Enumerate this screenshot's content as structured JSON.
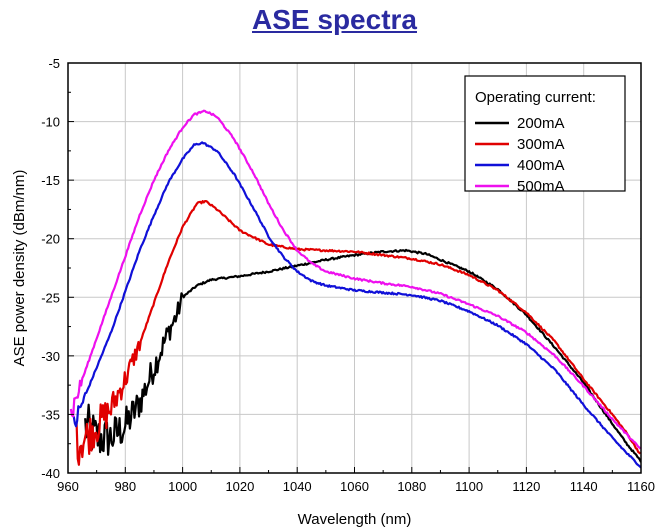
{
  "chart_data": {
    "type": "line",
    "title": "ASE spectra",
    "xlabel": "Wavelength (nm)",
    "ylabel": "ASE power density (dBm/nm)",
    "xlim": [
      960,
      1160
    ],
    "ylim": [
      -40,
      -5
    ],
    "xticks": [
      960,
      980,
      1000,
      1020,
      1040,
      1060,
      1080,
      1100,
      1120,
      1140,
      1160
    ],
    "yticks": [
      -40,
      -35,
      -30,
      -25,
      -20,
      -15,
      -10,
      -5
    ],
    "grid": true,
    "legend": {
      "title": "Operating current:",
      "position": "top-right",
      "entries": [
        "200mA",
        "300mA",
        "400mA",
        "500mA"
      ]
    },
    "series": [
      {
        "name": "200mA",
        "color": "#000000",
        "noise_below": 1000,
        "noise_amp": 2.2,
        "points": [
          [
            966,
            -36
          ],
          [
            970,
            -37
          ],
          [
            975,
            -37
          ],
          [
            980,
            -36
          ],
          [
            985,
            -34
          ],
          [
            990,
            -31
          ],
          [
            995,
            -28
          ],
          [
            998,
            -26.5
          ],
          [
            1000,
            -25
          ],
          [
            1005,
            -24
          ],
          [
            1010,
            -23.5
          ],
          [
            1020,
            -23.2
          ],
          [
            1030,
            -22.8
          ],
          [
            1040,
            -22.3
          ],
          [
            1050,
            -21.8
          ],
          [
            1060,
            -21.4
          ],
          [
            1070,
            -21.1
          ],
          [
            1078,
            -21.0
          ],
          [
            1085,
            -21.3
          ],
          [
            1090,
            -21.8
          ],
          [
            1100,
            -22.8
          ],
          [
            1110,
            -24.3
          ],
          [
            1120,
            -26.5
          ],
          [
            1130,
            -29.3
          ],
          [
            1140,
            -32.3
          ],
          [
            1150,
            -35.8
          ],
          [
            1155,
            -37.5
          ],
          [
            1160,
            -39.0
          ]
        ]
      },
      {
        "name": "300mA",
        "color": "#e00000",
        "noise_below": 985,
        "noise_amp": 2.0,
        "points": [
          [
            963,
            -37.5
          ],
          [
            966,
            -37
          ],
          [
            970,
            -36
          ],
          [
            975,
            -34.5
          ],
          [
            980,
            -32
          ],
          [
            985,
            -29
          ],
          [
            990,
            -25.5
          ],
          [
            995,
            -22
          ],
          [
            1000,
            -19
          ],
          [
            1005,
            -17
          ],
          [
            1008,
            -16.8
          ],
          [
            1012,
            -17.5
          ],
          [
            1020,
            -19.3
          ],
          [
            1030,
            -20.5
          ],
          [
            1040,
            -20.9
          ],
          [
            1050,
            -21.0
          ],
          [
            1060,
            -21.1
          ],
          [
            1070,
            -21.4
          ],
          [
            1080,
            -21.7
          ],
          [
            1090,
            -22.2
          ],
          [
            1100,
            -23.1
          ],
          [
            1110,
            -24.4
          ],
          [
            1120,
            -26.3
          ],
          [
            1130,
            -28.8
          ],
          [
            1140,
            -32.0
          ],
          [
            1150,
            -35.0
          ],
          [
            1155,
            -36.6
          ],
          [
            1160,
            -38.5
          ]
        ]
      },
      {
        "name": "400mA",
        "color": "#1010d8",
        "noise_below": 966,
        "noise_amp": 1.2,
        "points": [
          [
            962,
            -36
          ],
          [
            965,
            -34
          ],
          [
            970,
            -31
          ],
          [
            975,
            -28
          ],
          [
            980,
            -24.5
          ],
          [
            985,
            -21
          ],
          [
            990,
            -18
          ],
          [
            995,
            -15.2
          ],
          [
            1000,
            -13.2
          ],
          [
            1004,
            -12
          ],
          [
            1007,
            -11.8
          ],
          [
            1012,
            -12.5
          ],
          [
            1018,
            -14.5
          ],
          [
            1025,
            -17.5
          ],
          [
            1030,
            -19.8
          ],
          [
            1035,
            -21.5
          ],
          [
            1040,
            -22.8
          ],
          [
            1045,
            -23.6
          ],
          [
            1050,
            -24.0
          ],
          [
            1060,
            -24.4
          ],
          [
            1070,
            -24.6
          ],
          [
            1080,
            -24.8
          ],
          [
            1090,
            -25.3
          ],
          [
            1100,
            -26.2
          ],
          [
            1110,
            -27.4
          ],
          [
            1120,
            -29.0
          ],
          [
            1130,
            -31.2
          ],
          [
            1140,
            -34.2
          ],
          [
            1150,
            -37.0
          ],
          [
            1155,
            -38.3
          ],
          [
            1160,
            -39.5
          ]
        ]
      },
      {
        "name": "500mA",
        "color": "#ee10ee",
        "noise_below": 965,
        "noise_amp": 1.2,
        "points": [
          [
            961,
            -35
          ],
          [
            965,
            -32
          ],
          [
            970,
            -28.5
          ],
          [
            975,
            -25
          ],
          [
            980,
            -21.5
          ],
          [
            985,
            -18
          ],
          [
            990,
            -15
          ],
          [
            995,
            -12.5
          ],
          [
            1000,
            -10.5
          ],
          [
            1004,
            -9.4
          ],
          [
            1008,
            -9.1
          ],
          [
            1012,
            -9.6
          ],
          [
            1018,
            -11.5
          ],
          [
            1025,
            -14.5
          ],
          [
            1030,
            -17
          ],
          [
            1035,
            -19.2
          ],
          [
            1040,
            -21
          ],
          [
            1045,
            -22.1
          ],
          [
            1050,
            -22.8
          ],
          [
            1060,
            -23.4
          ],
          [
            1070,
            -23.8
          ],
          [
            1080,
            -24.1
          ],
          [
            1090,
            -24.7
          ],
          [
            1100,
            -25.6
          ],
          [
            1110,
            -26.6
          ],
          [
            1120,
            -28.0
          ],
          [
            1130,
            -30.0
          ],
          [
            1140,
            -32.6
          ],
          [
            1150,
            -35.4
          ],
          [
            1155,
            -36.7
          ],
          [
            1160,
            -38.0
          ]
        ]
      }
    ]
  }
}
